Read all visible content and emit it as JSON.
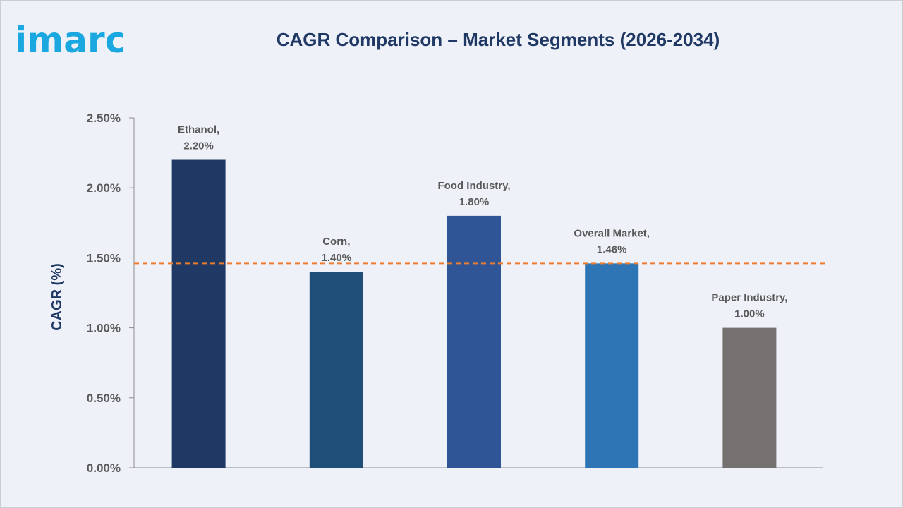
{
  "brand": {
    "logo_text": "imarc"
  },
  "chart_data": {
    "type": "bar",
    "title": "CAGR Comparison – Market Segments (2026-2034)",
    "ylabel": "CAGR (%)",
    "xlabel": "",
    "ylim": [
      0,
      2.5
    ],
    "yticks": [
      "0.00%",
      "0.50%",
      "1.00%",
      "1.50%",
      "2.00%",
      "2.50%"
    ],
    "categories": [
      "Ethanol",
      "Corn",
      "Food Industry",
      "Overall Market",
      "Paper Industry"
    ],
    "values": [
      2.2,
      1.4,
      1.8,
      1.46,
      1.0
    ],
    "data_labels": [
      [
        "Ethanol,",
        "2.20%"
      ],
      [
        "Corn,",
        "1.40%"
      ],
      [
        "Food Industry,",
        "1.80%"
      ],
      [
        "Overall Market,",
        "1.46%"
      ],
      [
        "Paper Industry,",
        "1.00%"
      ]
    ],
    "colors": [
      "#1f3864",
      "#1f4e79",
      "#2f5597",
      "#2e75b6",
      "#767171"
    ],
    "reference_line": {
      "value": 1.46,
      "style": "dashed",
      "color": "#ed7d31"
    },
    "grid": false,
    "legend": "none"
  }
}
